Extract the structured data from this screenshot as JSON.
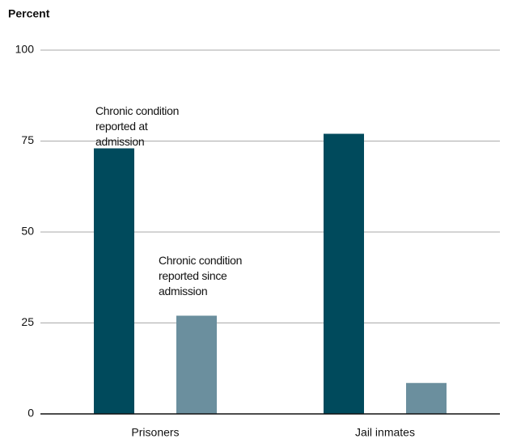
{
  "chart_data": {
    "type": "bar",
    "y_label": "Percent",
    "categories": [
      "Prisoners",
      "Jail inmates"
    ],
    "series": [
      {
        "name": "Chronic condition reported at admission",
        "color": "#004a5c",
        "values": [
          73,
          77
        ]
      },
      {
        "name": "Chronic condition reported since admission",
        "color": "#6b8f9e",
        "values": [
          27,
          8.5
        ]
      }
    ],
    "ylim": [
      0,
      100
    ],
    "yticks": [
      0,
      25,
      50,
      75,
      100
    ],
    "grid": true
  }
}
